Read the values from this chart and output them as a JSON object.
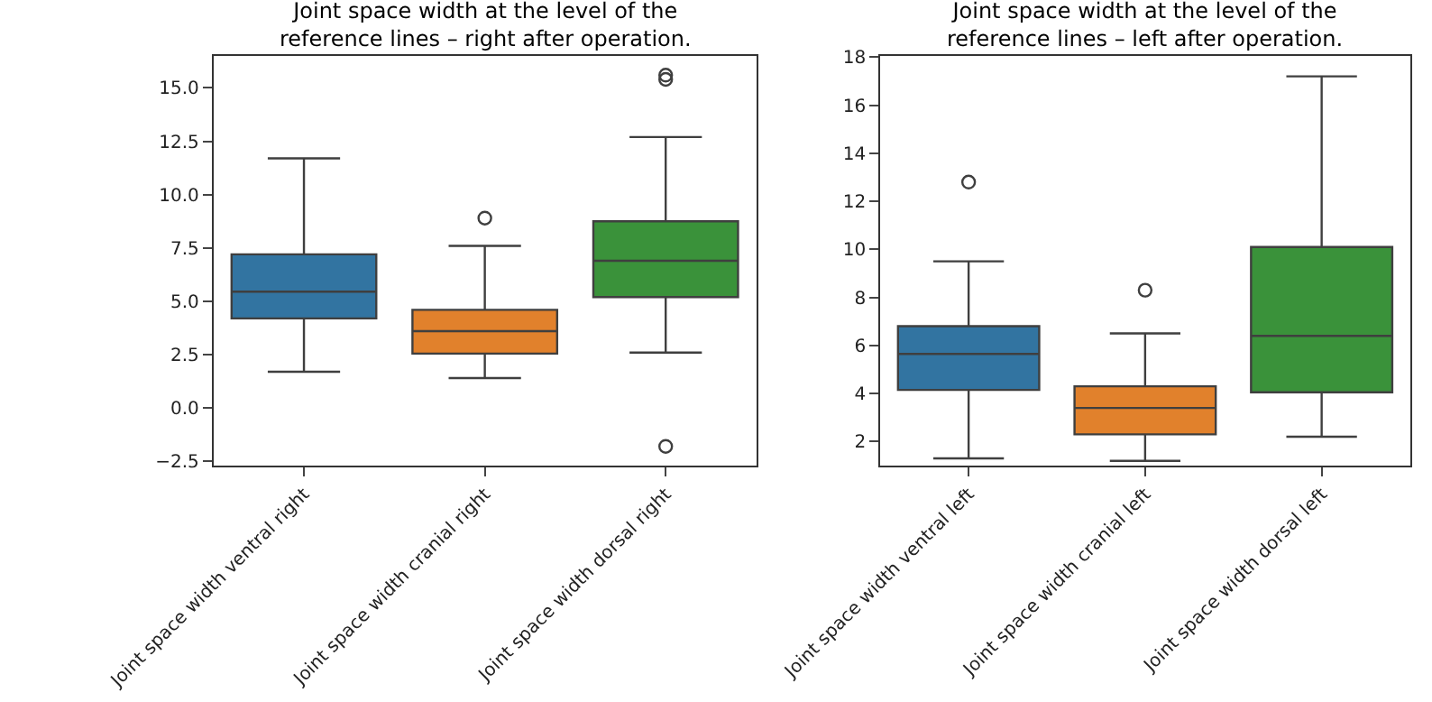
{
  "chart_data": [
    {
      "type": "box",
      "title": "Joint space width at the level of the\nreference lines – right after operation.",
      "categories": [
        "Joint space width ventral right",
        "Joint space width cranial right",
        "Joint space width dorsal right"
      ],
      "colors": [
        "#3274a1",
        "#e1812c",
        "#3a923a"
      ],
      "boxes": [
        {
          "low": 1.7,
          "q1": 4.2,
          "median": 5.45,
          "q3": 7.2,
          "high": 11.7
        },
        {
          "low": 1.4,
          "q1": 2.55,
          "median": 3.6,
          "q3": 4.6,
          "high": 7.6,
          "outliers": [
            8.9
          ]
        },
        {
          "low": 2.6,
          "q1": 5.2,
          "median": 6.9,
          "q3": 8.75,
          "high": 12.7,
          "outliers": [
            15.4,
            15.6,
            -1.8
          ]
        }
      ],
      "ylim": [
        -2.7,
        16.5
      ],
      "yticks": [
        {
          "value": -2.5,
          "label": "−2.5"
        },
        {
          "value": 0,
          "label": "0.0"
        },
        {
          "value": 2.5,
          "label": "2.5"
        },
        {
          "value": 5,
          "label": "5.0"
        },
        {
          "value": 7.5,
          "label": "7.5"
        },
        {
          "value": 10,
          "label": "10.0"
        },
        {
          "value": 12.5,
          "label": "12.5"
        },
        {
          "value": 15,
          "label": "15.0"
        }
      ]
    },
    {
      "type": "box",
      "title": "Joint space width at the level of the\nreference lines – left after operation.",
      "categories": [
        "Joint space width ventral left",
        "Joint space width cranial left",
        "Joint space width dorsal left"
      ],
      "colors": [
        "#3274a1",
        "#e1812c",
        "#3a923a"
      ],
      "boxes": [
        {
          "low": 1.3,
          "q1": 4.15,
          "median": 5.65,
          "q3": 6.8,
          "high": 9.5,
          "outliers": [
            12.8
          ]
        },
        {
          "low": 1.2,
          "q1": 2.3,
          "median": 3.4,
          "q3": 4.3,
          "high": 6.5,
          "outliers": [
            8.3
          ]
        },
        {
          "low": 2.2,
          "q1": 4.05,
          "median": 6.4,
          "q3": 10.1,
          "high": 17.2
        }
      ],
      "ylim": [
        1.0,
        18.05
      ],
      "yticks": [
        2,
        4,
        6,
        8,
        10,
        12,
        14,
        16,
        18
      ]
    }
  ]
}
